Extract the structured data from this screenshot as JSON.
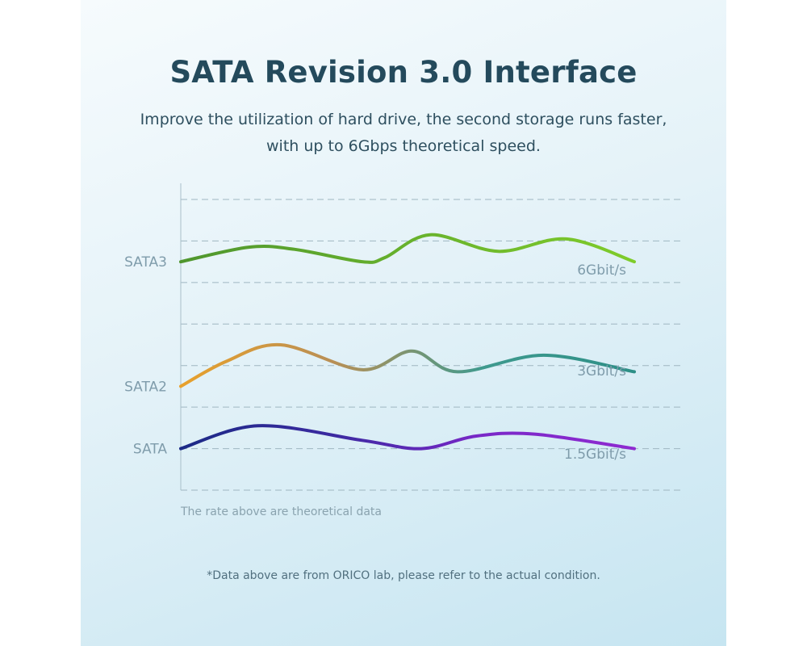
{
  "header": {
    "title": "SATA Revision 3.0 Interface",
    "subtitle_line1": "Improve the utilization of hard drive, the second storage runs faster,",
    "subtitle_line2": "with up to 6Gbps theoretical speed."
  },
  "chart_data": {
    "type": "line",
    "title": "",
    "xlabel": "",
    "ylabel": "",
    "grid": true,
    "series": [
      {
        "name": "SATA3",
        "rate_label": "6Gbit/s",
        "colors": [
          "#4f962e",
          "#7fcc2b"
        ],
        "x": [
          0,
          15,
          25,
          40,
          45,
          55,
          70,
          85,
          100
        ],
        "values": [
          5.5,
          5.85,
          5.8,
          5.5,
          5.6,
          6.15,
          5.75,
          6.05,
          5.5
        ]
      },
      {
        "name": "SATA2",
        "rate_label": "3Gbit/s",
        "colors": [
          "#e8a12c",
          "#b98f55",
          "#3f9a8e",
          "#2d8f87"
        ],
        "x": [
          0,
          10,
          22,
          40,
          51,
          61,
          80,
          100
        ],
        "values": [
          2.5,
          3.1,
          3.5,
          2.9,
          3.35,
          2.85,
          3.25,
          2.85
        ]
      },
      {
        "name": "SATA",
        "rate_label": "1.5Gbit/s",
        "colors": [
          "#1b2a86",
          "#3b2aa0",
          "#7a28c8",
          "#8f2ad0"
        ],
        "x": [
          0,
          17,
          40,
          53,
          65,
          78,
          100
        ],
        "values": [
          1.0,
          1.55,
          1.2,
          1.0,
          1.3,
          1.35,
          1.0
        ]
      }
    ],
    "y_ticks": [
      0,
      1,
      2,
      3,
      4,
      5,
      6,
      7
    ],
    "ylim": [
      0,
      7
    ],
    "x_range": [
      0,
      100
    ],
    "note": "The rate above are theoretical data"
  },
  "footnote": "*Data above are from ORICO lab, please refer to the actual condition."
}
